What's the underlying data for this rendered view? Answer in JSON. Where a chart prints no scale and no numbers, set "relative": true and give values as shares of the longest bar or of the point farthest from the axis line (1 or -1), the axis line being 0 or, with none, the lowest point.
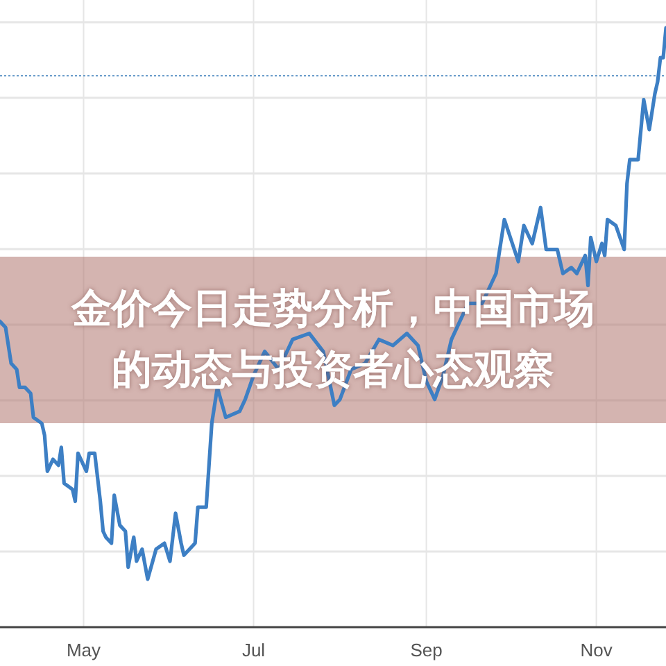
{
  "chart_data": {
    "type": "line",
    "title": "金价今日走势分析，中国市场的动态与投资者心态观察",
    "relative": true,
    "x": [
      "--04-01",
      "--04-03",
      "--04-05",
      "--04-07",
      "--04-08",
      "--04-10",
      "--04-12",
      "--04-13",
      "--04-16",
      "--04-17",
      "--04-18",
      "--04-20",
      "--04-22",
      "--04-23",
      "--04-24",
      "--04-27",
      "--04-28",
      "--04-29",
      "--05-02",
      "--05-03",
      "--05-05",
      "--05-07",
      "--05-08",
      "--05-09",
      "--05-11",
      "--05-12",
      "--05-14",
      "--05-16",
      "--05-17",
      "--05-19",
      "--05-20",
      "--05-22",
      "--05-24",
      "--05-27",
      "--05-30",
      "--06-01",
      "--06-03",
      "--06-05",
      "--06-06",
      "--06-10",
      "--06-11",
      "--06-14",
      "--06-16",
      "--06-18",
      "--06-21",
      "--06-26",
      "--06-28",
      "--07-01",
      "--07-05",
      "--07-10",
      "--07-15",
      "--07-21",
      "--07-26",
      "--07-30",
      "--08-01",
      "--08-05",
      "--08-10",
      "--08-15",
      "--08-20",
      "--08-25",
      "--08-29",
      "--09-01",
      "--09-04",
      "--09-07",
      "--09-10",
      "--09-14",
      "--09-16",
      "--09-21",
      "--09-26",
      "--09-29",
      "--10-04",
      "--10-06",
      "--10-09",
      "--10-12",
      "--10-14",
      "--10-18",
      "--10-20",
      "--10-23",
      "--10-25",
      "--10-28",
      "--10-29",
      "--10-30",
      "--11-01",
      "--11-03",
      "--11-04",
      "--11-05",
      "--11-08",
      "--11-11",
      "--11-12",
      "--11-13",
      "--11-16",
      "--11-18",
      "--11-20",
      "--11-22",
      "--11-23",
      "--11-24",
      "--11-25",
      "--11-26"
    ],
    "series": [
      {
        "color": "#3d7fc4",
        "values": [
          0.51,
          0.5,
          0.44,
          0.43,
          0.4,
          0.4,
          0.39,
          0.35,
          0.34,
          0.32,
          0.26,
          0.28,
          0.27,
          0.3,
          0.24,
          0.23,
          0.21,
          0.29,
          0.26,
          0.29,
          0.29,
          0.21,
          0.16,
          0.15,
          0.14,
          0.22,
          0.17,
          0.16,
          0.1,
          0.15,
          0.11,
          0.13,
          0.08,
          0.13,
          0.14,
          0.11,
          0.19,
          0.14,
          0.12,
          0.14,
          0.2,
          0.2,
          0.34,
          0.4,
          0.35,
          0.36,
          0.38,
          0.42,
          0.46,
          0.43,
          0.48,
          0.49,
          0.46,
          0.37,
          0.38,
          0.43,
          0.44,
          0.48,
          0.47,
          0.49,
          0.47,
          0.41,
          0.38,
          0.42,
          0.48,
          0.52,
          0.54,
          0.54,
          0.59,
          0.68,
          0.61,
          0.67,
          0.64,
          0.7,
          0.63,
          0.63,
          0.59,
          0.6,
          0.59,
          0.62,
          0.57,
          0.65,
          0.61,
          0.64,
          0.62,
          0.68,
          0.67,
          0.63,
          0.74,
          0.78,
          0.78,
          0.88,
          0.83,
          0.89,
          0.91,
          0.95,
          0.95,
          1
        ]
      }
    ],
    "xlim": [
      "--04-01",
      "--11-26"
    ],
    "xticks": [
      {
        "value": "--05-01",
        "label": "May"
      },
      {
        "value": "--07-01",
        "label": "Jul"
      },
      {
        "value": "--09-01",
        "label": "Sep"
      },
      {
        "value": "--11-01",
        "label": "Nov"
      }
    ],
    "ref_lines": [
      {
        "axis": "y",
        "value": 0.92,
        "color": "#6fa0cc",
        "line_style": "dotted"
      }
    ],
    "grid": true,
    "line_style": "solid",
    "marker": "none"
  }
}
